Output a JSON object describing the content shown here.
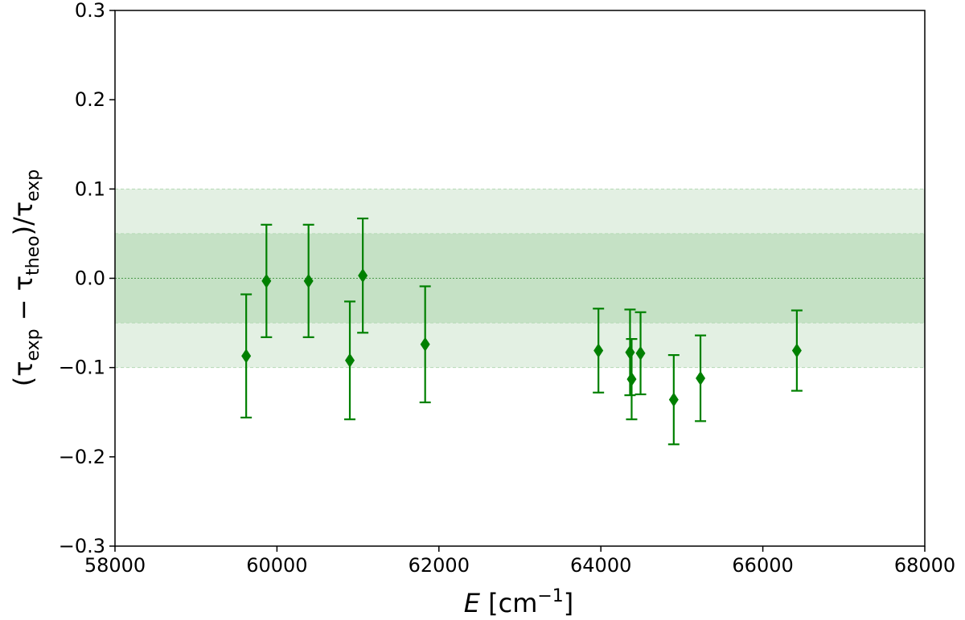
{
  "chart_data": {
    "type": "scatter",
    "xlabel_main": "E",
    "xlabel_unit_pre": " [cm",
    "xlabel_unit_sup": "−1",
    "xlabel_unit_post": "]",
    "ylabel": {
      "open": "(τ",
      "sub1": "exp",
      "minus": " − τ",
      "sub2": "theo",
      "mid": ")/τ",
      "sub3": "exp"
    },
    "xlim": [
      58000,
      68000
    ],
    "ylim": [
      -0.3,
      0.3
    ],
    "x_ticks": [
      58000,
      60000,
      62000,
      64000,
      66000,
      68000
    ],
    "x_tick_labels": [
      "58000",
      "60000",
      "62000",
      "64000",
      "66000",
      "68000"
    ],
    "y_ticks": [
      -0.3,
      -0.2,
      -0.1,
      0.0,
      0.1,
      0.2,
      0.3
    ],
    "y_tick_labels": [
      "−0.3",
      "−0.2",
      "−0.1",
      "0.0",
      "0.1",
      "0.2",
      "0.3"
    ],
    "bands": [
      {
        "lower": -0.1,
        "upper": 0.1,
        "color": "#e3f0e3"
      },
      {
        "lower": -0.05,
        "upper": 0.05,
        "color": "#c5e1c5"
      }
    ],
    "reference_line": 0.0,
    "marker_color": "#008000",
    "points": [
      {
        "x": 59620,
        "y": -0.087,
        "yerr_low": 0.069,
        "yerr_high": 0.069
      },
      {
        "x": 59870,
        "y": -0.003,
        "yerr_low": 0.063,
        "yerr_high": 0.063
      },
      {
        "x": 60390,
        "y": -0.003,
        "yerr_low": 0.063,
        "yerr_high": 0.063
      },
      {
        "x": 60900,
        "y": -0.092,
        "yerr_low": 0.066,
        "yerr_high": 0.066
      },
      {
        "x": 61060,
        "y": 0.003,
        "yerr_low": 0.064,
        "yerr_high": 0.064
      },
      {
        "x": 61830,
        "y": -0.074,
        "yerr_low": 0.065,
        "yerr_high": 0.065
      },
      {
        "x": 63970,
        "y": -0.081,
        "yerr_low": 0.047,
        "yerr_high": 0.047
      },
      {
        "x": 64360,
        "y": -0.083,
        "yerr_low": 0.048,
        "yerr_high": 0.048
      },
      {
        "x": 64380,
        "y": -0.113,
        "yerr_low": 0.045,
        "yerr_high": 0.045
      },
      {
        "x": 64490,
        "y": -0.084,
        "yerr_low": 0.046,
        "yerr_high": 0.046
      },
      {
        "x": 64900,
        "y": -0.136,
        "yerr_low": 0.05,
        "yerr_high": 0.05
      },
      {
        "x": 65230,
        "y": -0.112,
        "yerr_low": 0.048,
        "yerr_high": 0.048
      },
      {
        "x": 66420,
        "y": -0.081,
        "yerr_low": 0.045,
        "yerr_high": 0.045
      }
    ]
  }
}
